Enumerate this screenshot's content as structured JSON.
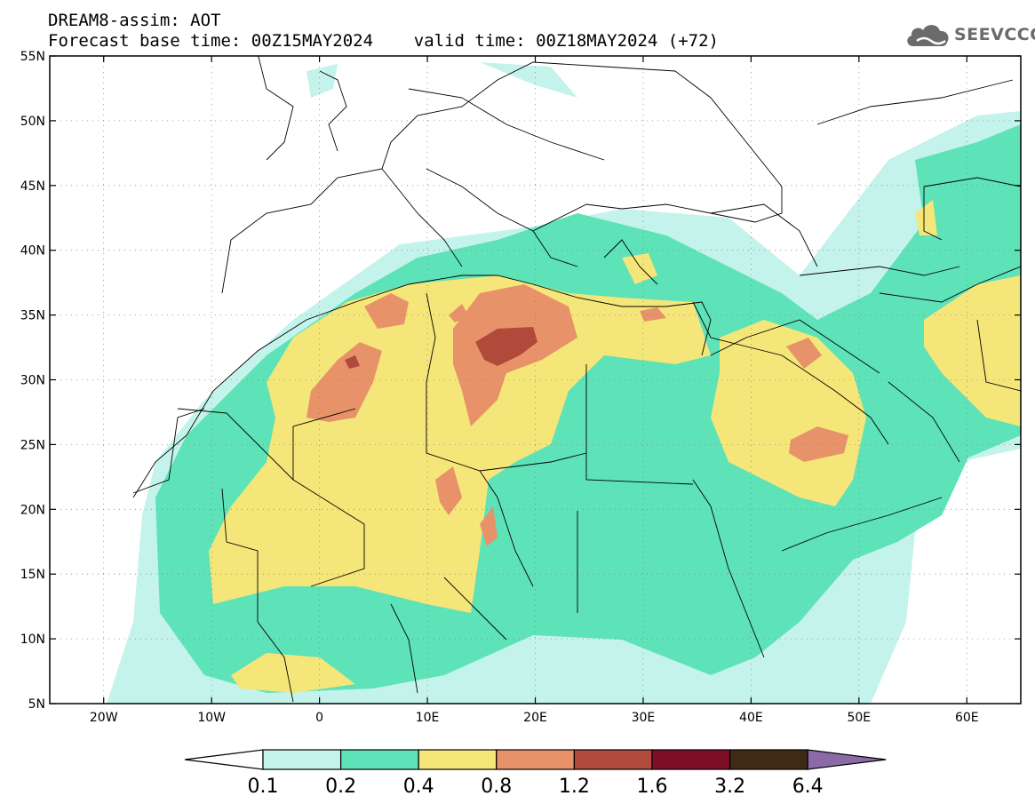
{
  "header": {
    "line1": "DREAM8-assim: AOT",
    "line2": "Forecast base time: 00Z15MAY2024    valid time: 00Z18MAY2024 (+72)"
  },
  "logo": {
    "text": "SEEVCCC",
    "icon": "cloud-icon"
  },
  "map": {
    "lon_range": [
      -25,
      65
    ],
    "lat_range": [
      5,
      55
    ],
    "lat_ticks": [
      {
        "value": 55,
        "label": "55N"
      },
      {
        "value": 50,
        "label": "50N"
      },
      {
        "value": 45,
        "label": "45N"
      },
      {
        "value": 40,
        "label": "40N"
      },
      {
        "value": 35,
        "label": "35N"
      },
      {
        "value": 30,
        "label": "30N"
      },
      {
        "value": 25,
        "label": "25N"
      },
      {
        "value": 20,
        "label": "20N"
      },
      {
        "value": 15,
        "label": "15N"
      },
      {
        "value": 10,
        "label": "10N"
      },
      {
        "value": 5,
        "label": "5N"
      }
    ],
    "lon_ticks": [
      {
        "value": -20,
        "label": "20W"
      },
      {
        "value": -10,
        "label": "10W"
      },
      {
        "value": 0,
        "label": "0"
      },
      {
        "value": 10,
        "label": "10E"
      },
      {
        "value": 20,
        "label": "20E"
      },
      {
        "value": 30,
        "label": "30E"
      },
      {
        "value": 40,
        "label": "40E"
      },
      {
        "value": 50,
        "label": "50E"
      },
      {
        "value": 60,
        "label": "60E"
      }
    ],
    "grid": true
  },
  "colorbar": {
    "labels": [
      "0.1",
      "0.2",
      "0.4",
      "0.8",
      "1.2",
      "1.6",
      "3.2",
      "6.4"
    ],
    "colors": [
      "#ffffff",
      "#c4f3ec",
      "#5ee2b8",
      "#f5e67a",
      "#e8926a",
      "#b04a3a",
      "#7d0e26",
      "#3f2a16",
      "#8c6aa8"
    ]
  }
}
